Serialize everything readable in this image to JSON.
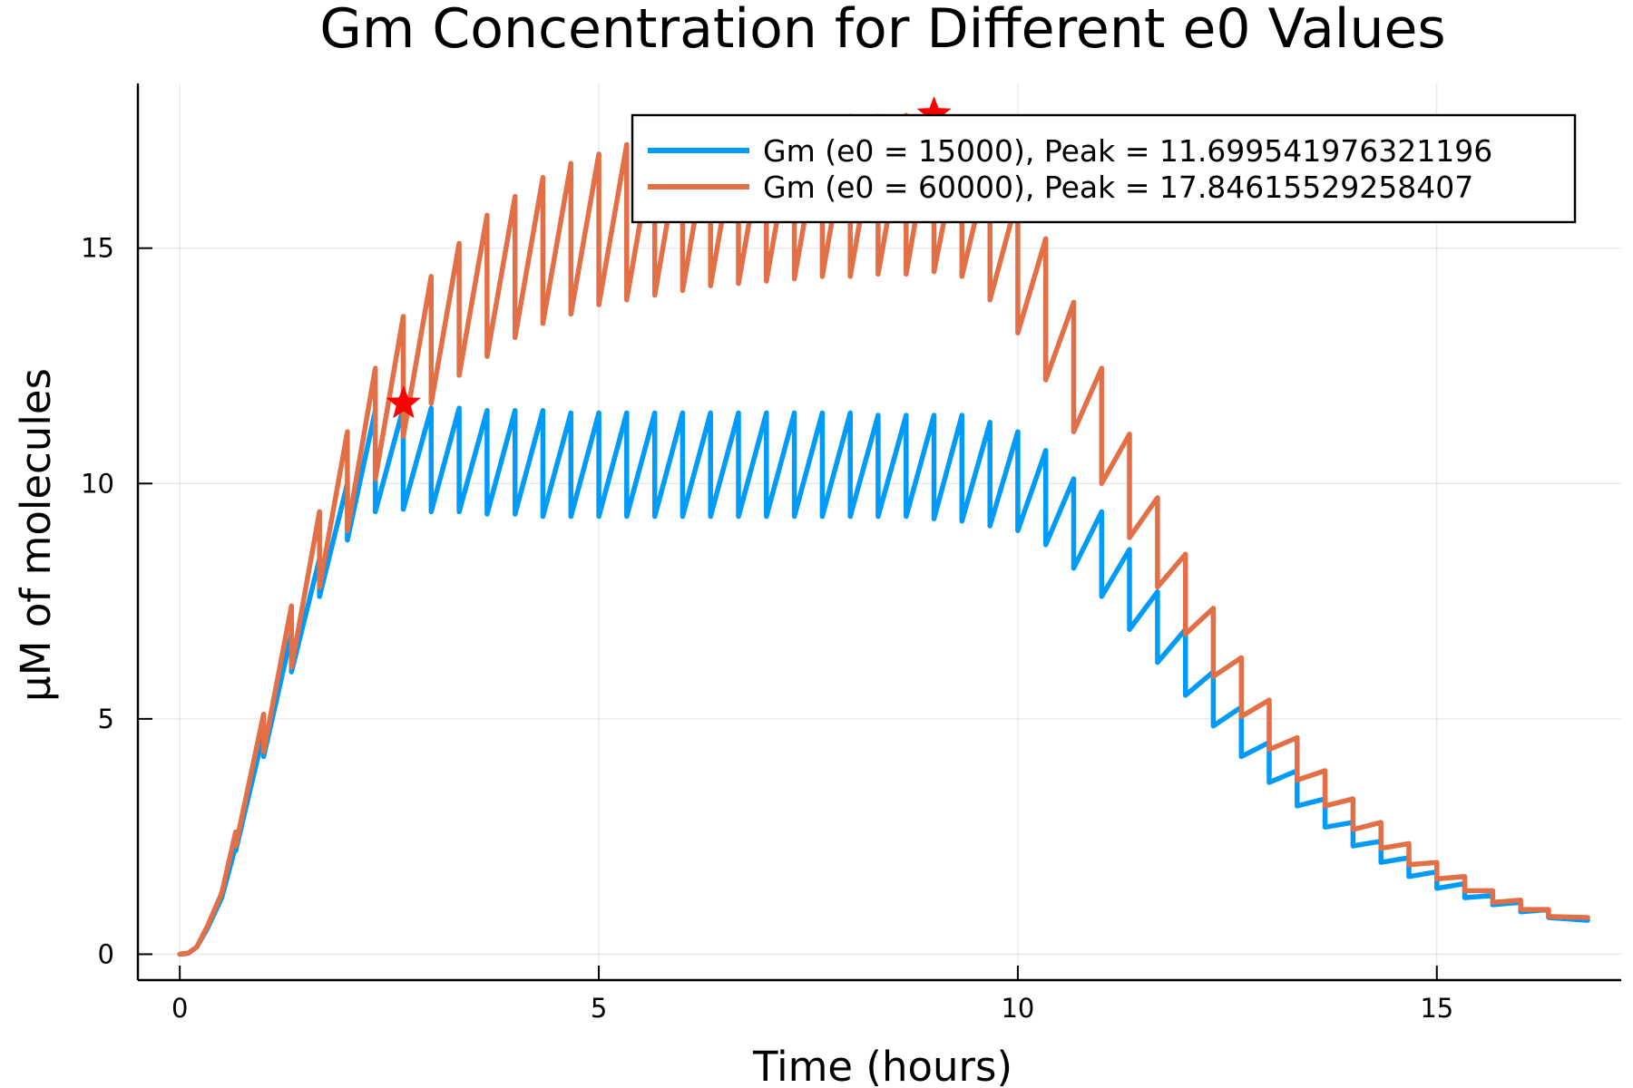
{
  "chart_data": {
    "type": "line",
    "title": "Gm Concentration for Different e0 Values",
    "xlabel": "Time (hours)",
    "ylabel": "μM of molecules",
    "xlim": [
      -0.5,
      17.2
    ],
    "ylim": [
      -0.55,
      18.5
    ],
    "xticks": [
      0,
      5,
      10,
      15
    ],
    "xtick_labels": [
      "0",
      "5",
      "10",
      "15"
    ],
    "yticks": [
      0,
      5,
      10,
      15
    ],
    "ytick_labels": [
      "0",
      "5",
      "10",
      "15"
    ],
    "grid": true,
    "legend_position": "top-right",
    "dose_interval_hours": 0.3333,
    "dose_count": 30,
    "series": [
      {
        "name": "Gm (e0 = 15000), Peak = 11.699541976321196",
        "color": "#009AF9",
        "peak": {
          "x": 2.67,
          "y": 11.6995
        },
        "points": [
          [
            0,
            0
          ],
          [
            0.1,
            0.02
          ],
          [
            0.2,
            0.15
          ],
          [
            0.33,
            0.55
          ],
          [
            0.5,
            1.2
          ],
          [
            0.667,
            2.3
          ],
          [
            0.667,
            2.2
          ],
          [
            1.0,
            4.7
          ],
          [
            1.0,
            4.2
          ],
          [
            1.333,
            6.8
          ],
          [
            1.333,
            6.0
          ],
          [
            1.667,
            8.4
          ],
          [
            1.667,
            7.6
          ],
          [
            2.0,
            10.0
          ],
          [
            2.0,
            8.8
          ],
          [
            2.333,
            11.55
          ],
          [
            2.333,
            9.4
          ],
          [
            2.667,
            11.6
          ],
          [
            2.667,
            9.45
          ],
          [
            3.0,
            11.6
          ],
          [
            3.0,
            9.4
          ],
          [
            3.333,
            11.6
          ],
          [
            3.333,
            9.4
          ],
          [
            3.667,
            11.55
          ],
          [
            3.667,
            9.35
          ],
          [
            4.0,
            11.55
          ],
          [
            4.0,
            9.35
          ],
          [
            4.333,
            11.55
          ],
          [
            4.333,
            9.3
          ],
          [
            4.667,
            11.5
          ],
          [
            4.667,
            9.3
          ],
          [
            5.0,
            11.5
          ],
          [
            5.0,
            9.3
          ],
          [
            5.333,
            11.5
          ],
          [
            5.333,
            9.3
          ],
          [
            5.667,
            11.5
          ],
          [
            5.667,
            9.3
          ],
          [
            6.0,
            11.5
          ],
          [
            6.0,
            9.3
          ],
          [
            6.333,
            11.5
          ],
          [
            6.333,
            9.3
          ],
          [
            6.667,
            11.5
          ],
          [
            6.667,
            9.3
          ],
          [
            7.0,
            11.5
          ],
          [
            7.0,
            9.3
          ],
          [
            7.333,
            11.5
          ],
          [
            7.333,
            9.3
          ],
          [
            7.667,
            11.5
          ],
          [
            7.667,
            9.3
          ],
          [
            8.0,
            11.5
          ],
          [
            8.0,
            9.3
          ],
          [
            8.333,
            11.45
          ],
          [
            8.333,
            9.3
          ],
          [
            8.667,
            11.45
          ],
          [
            8.667,
            9.3
          ],
          [
            9.0,
            11.45
          ],
          [
            9.0,
            9.25
          ],
          [
            9.333,
            11.45
          ],
          [
            9.333,
            9.2
          ],
          [
            9.667,
            11.3
          ],
          [
            9.667,
            9.1
          ],
          [
            10.0,
            11.1
          ],
          [
            10.0,
            9.0
          ],
          [
            10.333,
            10.7
          ],
          [
            10.333,
            8.7
          ],
          [
            10.667,
            10.1
          ],
          [
            10.667,
            8.2
          ],
          [
            11.0,
            9.4
          ],
          [
            11.0,
            7.6
          ],
          [
            11.333,
            8.6
          ],
          [
            11.333,
            6.9
          ],
          [
            11.667,
            7.7
          ],
          [
            11.667,
            6.2
          ],
          [
            12.0,
            6.9
          ],
          [
            12.0,
            5.5
          ],
          [
            12.333,
            6.0
          ],
          [
            12.333,
            4.85
          ],
          [
            12.667,
            5.25
          ],
          [
            12.667,
            4.2
          ],
          [
            13.0,
            4.5
          ],
          [
            13.0,
            3.65
          ],
          [
            13.333,
            3.9
          ],
          [
            13.333,
            3.15
          ],
          [
            13.667,
            3.3
          ],
          [
            13.667,
            2.7
          ],
          [
            14.0,
            2.8
          ],
          [
            14.0,
            2.3
          ],
          [
            14.333,
            2.4
          ],
          [
            14.333,
            1.95
          ],
          [
            14.667,
            2.05
          ],
          [
            14.667,
            1.65
          ],
          [
            15.0,
            1.75
          ],
          [
            15.0,
            1.4
          ],
          [
            15.333,
            1.5
          ],
          [
            15.333,
            1.2
          ],
          [
            15.667,
            1.25
          ],
          [
            15.667,
            1.05
          ],
          [
            16.0,
            1.1
          ],
          [
            16.0,
            0.9
          ],
          [
            16.333,
            0.95
          ],
          [
            16.333,
            0.78
          ],
          [
            16.8,
            0.72
          ]
        ]
      },
      {
        "name": "Gm (e0 = 60000), Peak = 17.84615529258407",
        "color": "#E26F46",
        "peak": {
          "x": 9.0,
          "y": 17.846
        },
        "points": [
          [
            0,
            0
          ],
          [
            0.1,
            0.02
          ],
          [
            0.2,
            0.15
          ],
          [
            0.33,
            0.6
          ],
          [
            0.5,
            1.3
          ],
          [
            0.667,
            2.6
          ],
          [
            0.667,
            2.3
          ],
          [
            1.0,
            5.1
          ],
          [
            1.0,
            4.3
          ],
          [
            1.333,
            7.4
          ],
          [
            1.333,
            6.1
          ],
          [
            1.667,
            9.4
          ],
          [
            1.667,
            7.8
          ],
          [
            2.0,
            11.1
          ],
          [
            2.0,
            9.0
          ],
          [
            2.333,
            12.45
          ],
          [
            2.333,
            10.1
          ],
          [
            2.667,
            13.55
          ],
          [
            2.667,
            11.0
          ],
          [
            3.0,
            14.4
          ],
          [
            3.0,
            11.7
          ],
          [
            3.333,
            15.1
          ],
          [
            3.333,
            12.3
          ],
          [
            3.667,
            15.7
          ],
          [
            3.667,
            12.7
          ],
          [
            4.0,
            16.1
          ],
          [
            4.0,
            13.1
          ],
          [
            4.333,
            16.5
          ],
          [
            4.333,
            13.4
          ],
          [
            4.667,
            16.8
          ],
          [
            4.667,
            13.6
          ],
          [
            5.0,
            17.0
          ],
          [
            5.0,
            13.8
          ],
          [
            5.333,
            17.2
          ],
          [
            5.333,
            13.9
          ],
          [
            5.667,
            17.35
          ],
          [
            5.667,
            14.0
          ],
          [
            6.0,
            17.45
          ],
          [
            6.0,
            14.1
          ],
          [
            6.333,
            17.55
          ],
          [
            6.333,
            14.2
          ],
          [
            6.667,
            17.6
          ],
          [
            6.667,
            14.25
          ],
          [
            7.0,
            17.65
          ],
          [
            7.0,
            14.3
          ],
          [
            7.333,
            17.7
          ],
          [
            7.333,
            14.35
          ],
          [
            7.667,
            17.75
          ],
          [
            7.667,
            14.4
          ],
          [
            8.0,
            17.8
          ],
          [
            8.0,
            14.4
          ],
          [
            8.333,
            17.8
          ],
          [
            8.333,
            14.45
          ],
          [
            8.667,
            17.82
          ],
          [
            8.667,
            14.45
          ],
          [
            9.0,
            17.85
          ],
          [
            9.0,
            14.5
          ],
          [
            9.333,
            17.5
          ],
          [
            9.333,
            14.4
          ],
          [
            9.667,
            16.9
          ],
          [
            9.667,
            13.9
          ],
          [
            10.0,
            16.1
          ],
          [
            10.0,
            13.2
          ],
          [
            10.333,
            15.2
          ],
          [
            10.333,
            12.2
          ],
          [
            10.667,
            13.85
          ],
          [
            10.667,
            11.1
          ],
          [
            11.0,
            12.45
          ],
          [
            11.0,
            10.0
          ],
          [
            11.333,
            11.05
          ],
          [
            11.333,
            8.85
          ],
          [
            11.667,
            9.7
          ],
          [
            11.667,
            7.8
          ],
          [
            12.0,
            8.5
          ],
          [
            12.0,
            6.8
          ],
          [
            12.333,
            7.35
          ],
          [
            12.333,
            5.9
          ],
          [
            12.667,
            6.3
          ],
          [
            12.667,
            5.05
          ],
          [
            13.0,
            5.4
          ],
          [
            13.0,
            4.35
          ],
          [
            13.333,
            4.6
          ],
          [
            13.333,
            3.7
          ],
          [
            13.667,
            3.9
          ],
          [
            13.667,
            3.15
          ],
          [
            14.0,
            3.3
          ],
          [
            14.0,
            2.65
          ],
          [
            14.333,
            2.8
          ],
          [
            14.333,
            2.25
          ],
          [
            14.667,
            2.35
          ],
          [
            14.667,
            1.9
          ],
          [
            15.0,
            1.95
          ],
          [
            15.0,
            1.6
          ],
          [
            15.333,
            1.65
          ],
          [
            15.333,
            1.35
          ],
          [
            15.667,
            1.35
          ],
          [
            15.667,
            1.1
          ],
          [
            16.0,
            1.15
          ],
          [
            16.0,
            0.95
          ],
          [
            16.333,
            0.95
          ],
          [
            16.333,
            0.8
          ],
          [
            16.8,
            0.78
          ]
        ]
      }
    ],
    "peak_markers": {
      "shape": "star",
      "color": "#FF0000"
    }
  }
}
